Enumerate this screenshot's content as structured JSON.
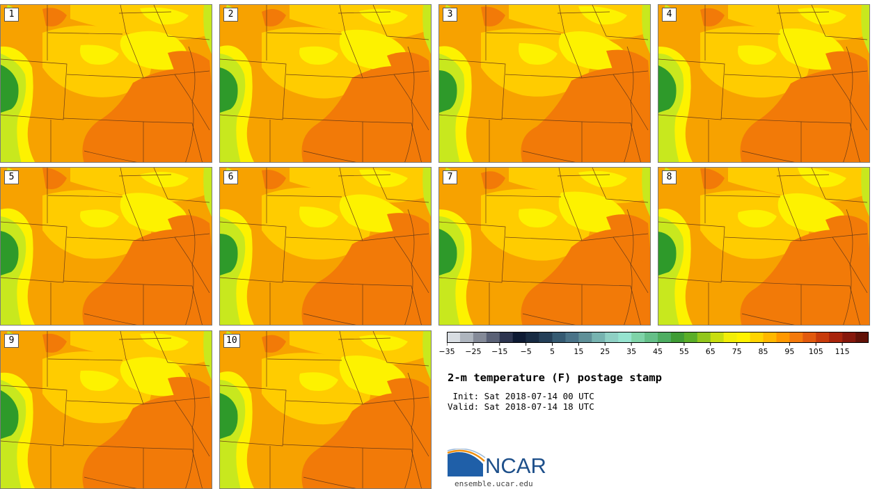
{
  "product_title": "2-m temperature (F) postage stamp",
  "init_time": " Init: Sat 2018-07-14 00 UTC",
  "valid_time": "Valid: Sat 2018-07-14 18 UTC",
  "org_name": "NCAR",
  "website": "ensemble.ucar.edu",
  "members": [
    {
      "label": "1"
    },
    {
      "label": "2"
    },
    {
      "label": "3"
    },
    {
      "label": "4"
    },
    {
      "label": "5"
    },
    {
      "label": "6"
    },
    {
      "label": "7"
    },
    {
      "label": "8"
    },
    {
      "label": "9"
    },
    {
      "label": "10"
    }
  ],
  "colorbar": {
    "min": -35,
    "max": 125,
    "step": 5,
    "tick_labels": [
      "−35",
      "−25",
      "−15",
      "−5",
      "5",
      "15",
      "25",
      "35",
      "45",
      "55",
      "65",
      "75",
      "85",
      "95",
      "105",
      "115"
    ],
    "tick_values": [
      -35,
      -25,
      -15,
      -5,
      5,
      15,
      25,
      35,
      45,
      55,
      65,
      75,
      85,
      95,
      105,
      115
    ],
    "colors": [
      "#d8dde2",
      "#aeb5be",
      "#848a98",
      "#5a6176",
      "#2d3550",
      "#0d1a33",
      "#172a42",
      "#243f58",
      "#355a72",
      "#4a7388",
      "#5f9098",
      "#77b3b0",
      "#8fd0c4",
      "#96e3cf",
      "#7fd3a8",
      "#65bf88",
      "#4ead62",
      "#3f9c35",
      "#5aae28",
      "#92c61c",
      "#c8de10",
      "#f2ee08",
      "#fff200",
      "#ffd400",
      "#ffb800",
      "#ff9800",
      "#f47a0c",
      "#e25a0e",
      "#c83c0c",
      "#a8240c",
      "#86180c",
      "#621208"
    ]
  },
  "map_colors": {
    "orange": "#f7a200",
    "dark_orange": "#f27a08",
    "gold": "#ffcc00",
    "yellow": "#fdf200",
    "lime": "#c8e81e",
    "green": "#2e9a2a",
    "line": "#6a3a16"
  },
  "logo_colors": {
    "blue": "#1f5fa8",
    "orange": "#f09010",
    "navy": "#1d4f8a"
  }
}
